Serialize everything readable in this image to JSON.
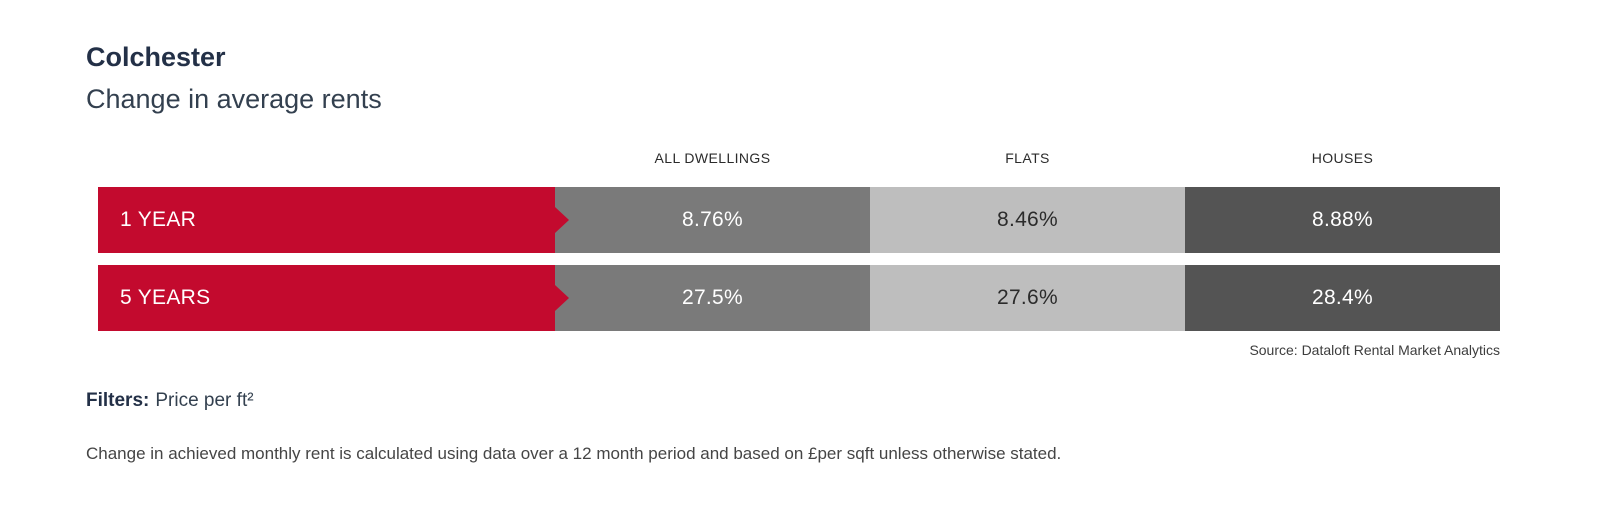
{
  "header": {
    "title": "Colchester",
    "subtitle": "Change in average rents"
  },
  "chart_data": {
    "type": "table",
    "title": "Colchester — Change in average rents",
    "columns": [
      "ALL DWELLINGS",
      "FLATS",
      "HOUSES"
    ],
    "rows": [
      {
        "label": "1 YEAR",
        "display": [
          "8.76%",
          "8.46%",
          "8.88%"
        ],
        "values_numeric": [
          8.76,
          8.46,
          8.88
        ]
      },
      {
        "label": "5 YEARS",
        "display": [
          "27.5%",
          "27.6%",
          "28.4%"
        ],
        "values_numeric": [
          27.5,
          27.6,
          28.4
        ]
      }
    ],
    "unit": "%",
    "source": "Source: Dataloft Rental Market Analytics",
    "colors": {
      "row_label_bar": "#c30a2e",
      "all_dwellings_cell": "#7a7a7a",
      "flats_cell": "#bebebe",
      "houses_cell": "#545454",
      "title_text": "#233047"
    }
  },
  "filters": {
    "label": "Filters:",
    "value": "Price per ft²"
  },
  "footnote": "Change in achieved monthly rent is calculated using data over a 12 month period and based on £per sqft unless otherwise stated."
}
